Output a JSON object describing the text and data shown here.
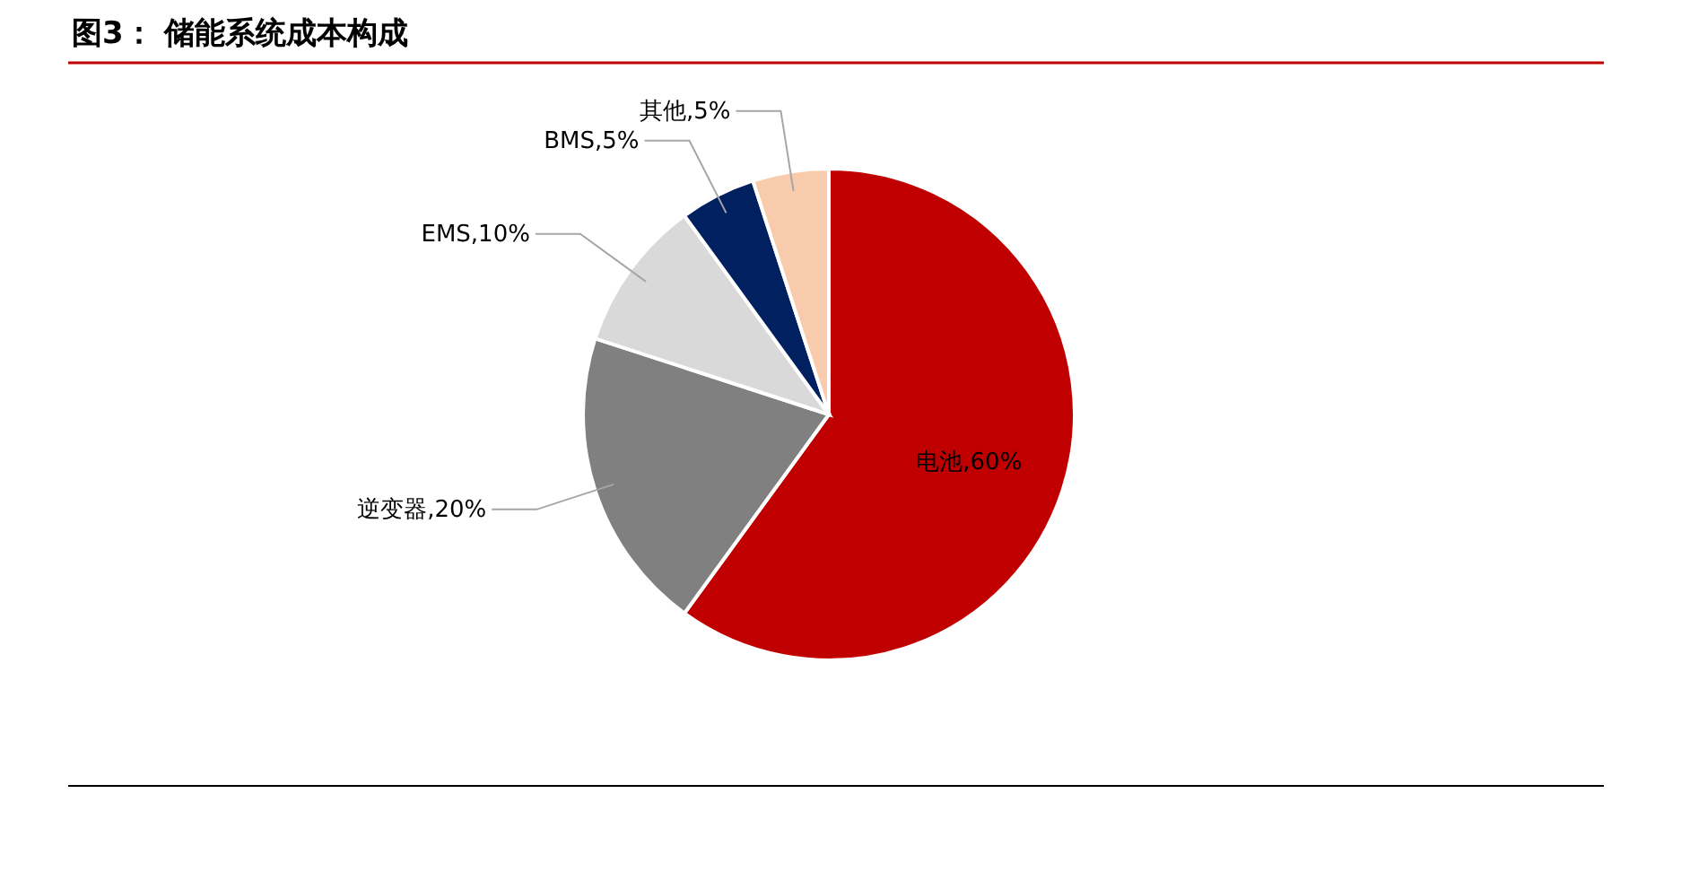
{
  "chart_data": {
    "type": "pie",
    "title": "图3：  储能系统成本构成",
    "categories": [
      "电池",
      "逆变器",
      "EMS",
      "BMS",
      "其他"
    ],
    "values": [
      60,
      20,
      10,
      5,
      5
    ],
    "value_labels": [
      "60%",
      "20%",
      "10%",
      "5%",
      "5%"
    ],
    "colors": [
      "#c00000",
      "#808080",
      "#d9d9d9",
      "#002060",
      "#f8cbad"
    ],
    "legend": false
  }
}
